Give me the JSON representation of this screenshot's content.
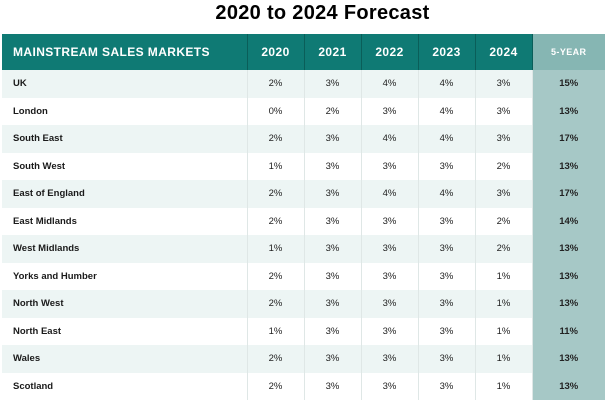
{
  "title": "2020 to 2024 Forecast",
  "columns": [
    "MAINSTREAM SALES MARKETS",
    "2020",
    "2021",
    "2022",
    "2023",
    "2024",
    "5-YEAR"
  ],
  "rows": [
    {
      "region": "UK",
      "values": [
        "2%",
        "3%",
        "4%",
        "4%",
        "3%"
      ],
      "five_year": "15%"
    },
    {
      "region": "London",
      "values": [
        "0%",
        "2%",
        "3%",
        "4%",
        "3%"
      ],
      "five_year": "13%"
    },
    {
      "region": "South East",
      "values": [
        "2%",
        "3%",
        "4%",
        "4%",
        "3%"
      ],
      "five_year": "17%"
    },
    {
      "region": "South West",
      "values": [
        "1%",
        "3%",
        "3%",
        "3%",
        "2%"
      ],
      "five_year": "13%"
    },
    {
      "region": "East of England",
      "values": [
        "2%",
        "3%",
        "4%",
        "4%",
        "3%"
      ],
      "five_year": "17%"
    },
    {
      "region": "East Midlands",
      "values": [
        "2%",
        "3%",
        "3%",
        "3%",
        "2%"
      ],
      "five_year": "14%"
    },
    {
      "region": "West Midlands",
      "values": [
        "1%",
        "3%",
        "3%",
        "3%",
        "2%"
      ],
      "five_year": "13%"
    },
    {
      "region": "Yorks and Humber",
      "values": [
        "2%",
        "3%",
        "3%",
        "3%",
        "1%"
      ],
      "five_year": "13%"
    },
    {
      "region": "North West",
      "values": [
        "2%",
        "3%",
        "3%",
        "3%",
        "1%"
      ],
      "five_year": "13%"
    },
    {
      "region": "North East",
      "values": [
        "1%",
        "3%",
        "3%",
        "3%",
        "1%"
      ],
      "five_year": "11%"
    },
    {
      "region": "Wales",
      "values": [
        "2%",
        "3%",
        "3%",
        "3%",
        "1%"
      ],
      "five_year": "13%"
    },
    {
      "region": "Scotland",
      "values": [
        "2%",
        "3%",
        "3%",
        "3%",
        "1%"
      ],
      "five_year": "13%"
    }
  ],
  "colors": {
    "header": "#0f7a74",
    "five_year_header": "#86b6b3",
    "five_year_cell": "#a6c8c6",
    "row_alt": "#edf5f4"
  }
}
